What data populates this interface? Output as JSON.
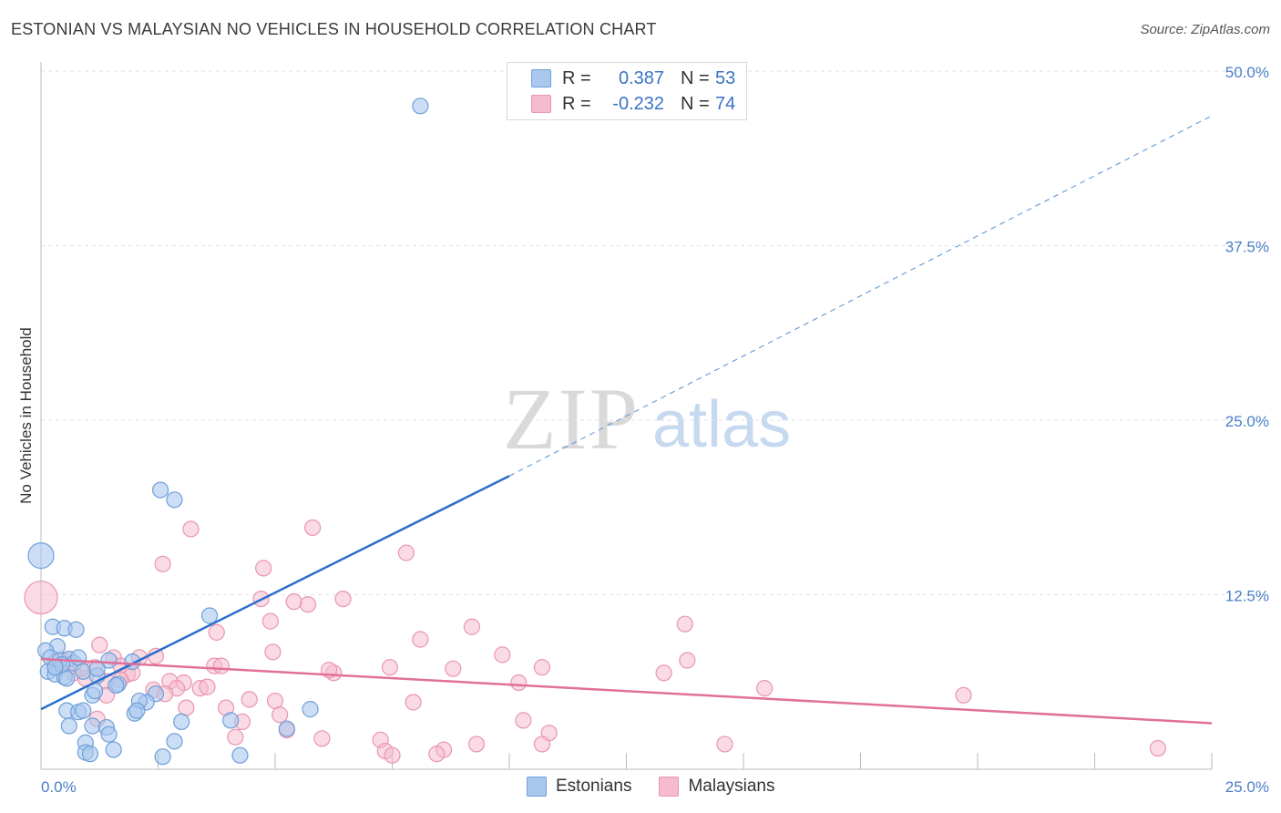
{
  "header": {
    "title": "ESTONIAN VS MALAYSIAN NO VEHICLES IN HOUSEHOLD CORRELATION CHART",
    "source": "Source: ZipAtlas.com"
  },
  "legend_box": {
    "rows": [
      {
        "r_label": "R =",
        "r_value": "0.387",
        "n_label": "N =",
        "n_value": "53"
      },
      {
        "r_label": "R =",
        "r_value": "-0.232",
        "n_label": "N =",
        "n_value": "74"
      }
    ]
  },
  "watermark": {
    "zip": "ZIP",
    "atlas": "atlas"
  },
  "colors": {
    "estonians_fill": "#a9c8ee",
    "estonians_stroke": "#6f9fd8",
    "estonians_line": "#2a6fcc",
    "malaysians_fill": "#f6bccd",
    "malaysians_stroke": "#e996b0",
    "malaysians_line": "#e0709a",
    "tick_label": "#4a7fc8",
    "grid": "#e2e2e2"
  },
  "chart_data": {
    "type": "scatter",
    "title": "ESTONIAN VS MALAYSIAN NO VEHICLES IN HOUSEHOLD CORRELATION CHART",
    "xlabel": "",
    "ylabel": "No Vehicles in Household",
    "xlim": [
      0,
      25
    ],
    "ylim": [
      0,
      50
    ],
    "x_tick_labels": [
      "0.0%",
      "25.0%"
    ],
    "y_ticks": [
      12.5,
      25.0,
      37.5,
      50.0
    ],
    "y_tick_labels": [
      "12.5%",
      "25.0%",
      "37.5%",
      "50.0%"
    ],
    "grid": true,
    "legend_position": "bottom-center",
    "series": [
      {
        "name": "Estonians",
        "r": 0.387,
        "n": 53,
        "trend": {
          "x0": 0,
          "y0": 4.3,
          "x1": 10,
          "y1": 21.0,
          "dashed_to": {
            "x": 25,
            "y": 46.8
          }
        },
        "points": [
          [
            8.1,
            47.5
          ],
          [
            2.55,
            20.0
          ],
          [
            2.85,
            19.3
          ],
          [
            0.0,
            15.3
          ],
          [
            3.6,
            11.0
          ],
          [
            0.25,
            10.2
          ],
          [
            0.5,
            10.1
          ],
          [
            0.75,
            10.0
          ],
          [
            0.35,
            8.8
          ],
          [
            0.1,
            8.5
          ],
          [
            0.2,
            8.0
          ],
          [
            0.4,
            7.8
          ],
          [
            0.6,
            7.9
          ],
          [
            0.7,
            7.6
          ],
          [
            0.8,
            8.0
          ],
          [
            1.45,
            7.8
          ],
          [
            1.95,
            7.7
          ],
          [
            0.15,
            7.0
          ],
          [
            0.3,
            6.8
          ],
          [
            0.5,
            6.6
          ],
          [
            0.55,
            6.5
          ],
          [
            0.9,
            7.0
          ],
          [
            1.2,
            6.7
          ],
          [
            1.65,
            6.1
          ],
          [
            1.6,
            6.0
          ],
          [
            2.45,
            5.4
          ],
          [
            1.1,
            5.3
          ],
          [
            1.15,
            5.6
          ],
          [
            2.25,
            4.8
          ],
          [
            2.1,
            4.9
          ],
          [
            0.55,
            4.2
          ],
          [
            0.8,
            4.1
          ],
          [
            0.9,
            4.2
          ],
          [
            2.0,
            4.0
          ],
          [
            2.05,
            4.2
          ],
          [
            5.75,
            4.3
          ],
          [
            3.0,
            3.4
          ],
          [
            4.05,
            3.5
          ],
          [
            0.6,
            3.1
          ],
          [
            1.1,
            3.1
          ],
          [
            1.4,
            3.0
          ],
          [
            1.45,
            2.5
          ],
          [
            5.25,
            2.9
          ],
          [
            0.95,
            1.9
          ],
          [
            2.85,
            2.0
          ],
          [
            1.55,
            1.4
          ],
          [
            0.95,
            1.2
          ],
          [
            1.05,
            1.1
          ],
          [
            2.6,
            0.9
          ],
          [
            4.25,
            1.0
          ],
          [
            1.2,
            7.2
          ],
          [
            0.45,
            7.5
          ],
          [
            0.3,
            7.3
          ]
        ]
      },
      {
        "name": "Malaysians",
        "r": -0.232,
        "n": 74,
        "trend": {
          "x0": 0,
          "y0": 7.9,
          "x1": 25,
          "y1": 3.3
        },
        "points": [
          [
            0.0,
            12.3
          ],
          [
            3.2,
            17.2
          ],
          [
            5.8,
            17.3
          ],
          [
            7.8,
            15.5
          ],
          [
            2.6,
            14.7
          ],
          [
            4.75,
            14.4
          ],
          [
            4.7,
            12.2
          ],
          [
            6.45,
            12.2
          ],
          [
            5.4,
            12.0
          ],
          [
            5.7,
            11.8
          ],
          [
            4.9,
            10.6
          ],
          [
            9.2,
            10.2
          ],
          [
            13.75,
            10.4
          ],
          [
            3.75,
            9.8
          ],
          [
            8.1,
            9.3
          ],
          [
            1.25,
            8.9
          ],
          [
            4.95,
            8.4
          ],
          [
            9.85,
            8.2
          ],
          [
            1.55,
            8.0
          ],
          [
            2.45,
            8.1
          ],
          [
            0.5,
            7.8
          ],
          [
            1.15,
            7.3
          ],
          [
            1.7,
            7.4
          ],
          [
            3.7,
            7.4
          ],
          [
            3.85,
            7.4
          ],
          [
            7.45,
            7.3
          ],
          [
            8.8,
            7.2
          ],
          [
            10.7,
            7.3
          ],
          [
            13.8,
            7.8
          ],
          [
            0.7,
            6.9
          ],
          [
            1.85,
            6.8
          ],
          [
            1.95,
            6.9
          ],
          [
            6.25,
            6.9
          ],
          [
            13.3,
            6.9
          ],
          [
            0.95,
            6.5
          ],
          [
            1.4,
            6.3
          ],
          [
            1.7,
            6.4
          ],
          [
            2.75,
            6.3
          ],
          [
            3.05,
            6.2
          ],
          [
            10.2,
            6.2
          ],
          [
            2.4,
            5.7
          ],
          [
            2.9,
            5.8
          ],
          [
            3.4,
            5.8
          ],
          [
            3.55,
            5.9
          ],
          [
            15.45,
            5.8
          ],
          [
            1.4,
            5.3
          ],
          [
            2.65,
            5.4
          ],
          [
            4.45,
            5.0
          ],
          [
            5.0,
            4.9
          ],
          [
            7.95,
            4.8
          ],
          [
            19.7,
            5.3
          ],
          [
            3.1,
            4.4
          ],
          [
            3.95,
            4.4
          ],
          [
            5.1,
            3.9
          ],
          [
            1.2,
            3.6
          ],
          [
            10.3,
            3.5
          ],
          [
            4.3,
            3.4
          ],
          [
            5.25,
            2.8
          ],
          [
            4.15,
            2.3
          ],
          [
            6.0,
            2.2
          ],
          [
            10.85,
            2.6
          ],
          [
            7.25,
            2.1
          ],
          [
            9.3,
            1.8
          ],
          [
            14.6,
            1.8
          ],
          [
            8.6,
            1.4
          ],
          [
            10.7,
            1.8
          ],
          [
            7.35,
            1.3
          ],
          [
            8.45,
            1.1
          ],
          [
            23.85,
            1.5
          ],
          [
            7.5,
            1.0
          ],
          [
            0.3,
            7.6
          ],
          [
            0.85,
            7.2
          ],
          [
            2.1,
            8.0
          ],
          [
            6.15,
            7.1
          ]
        ]
      }
    ]
  }
}
